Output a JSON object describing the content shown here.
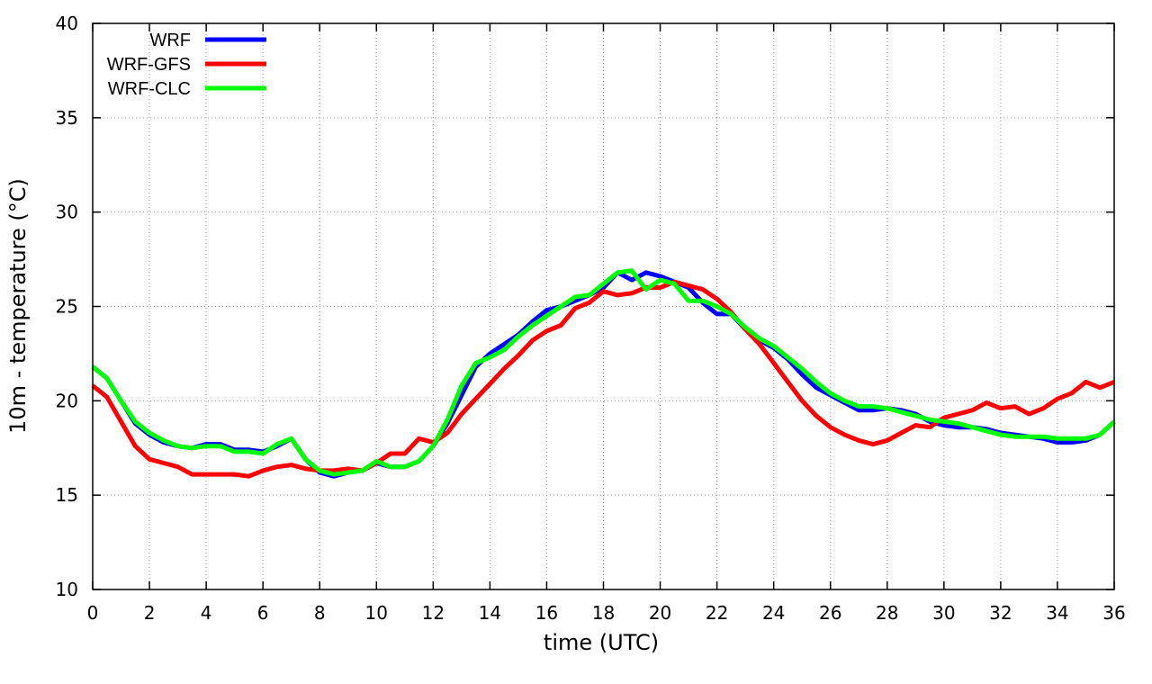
{
  "chart_data": {
    "type": "line",
    "title": "",
    "xlabel": "time (UTC)",
    "ylabel": "10m - temperature (°C)",
    "xlim": [
      0,
      36
    ],
    "ylim": [
      10,
      40
    ],
    "xticks": [
      0,
      2,
      4,
      6,
      8,
      10,
      12,
      14,
      16,
      18,
      20,
      22,
      24,
      26,
      28,
      30,
      32,
      34,
      36
    ],
    "yticks": [
      10,
      15,
      20,
      25,
      30,
      35,
      40
    ],
    "grid": true,
    "legend_position": "top-left",
    "series": [
      {
        "name": "WRF",
        "color": "#0000ff",
        "x": [
          0,
          0.5,
          1,
          1.5,
          2,
          2.5,
          3,
          3.5,
          4,
          4.5,
          5,
          5.5,
          6,
          6.5,
          7,
          7.5,
          8,
          8.5,
          9,
          9.5,
          10,
          10.5,
          11,
          11.5,
          12,
          12.5,
          13,
          13.5,
          14,
          14.5,
          15,
          15.5,
          16,
          16.5,
          17,
          17.5,
          18,
          18.5,
          19,
          19.5,
          20,
          20.5,
          21,
          21.5,
          22,
          22.5,
          23,
          23.5,
          24,
          24.5,
          25,
          25.5,
          26,
          26.5,
          27,
          27.5,
          28,
          28.5,
          29,
          29.5,
          30,
          30.5,
          31,
          31.5,
          32,
          32.5,
          33,
          33.5,
          34,
          34.5,
          35,
          35.5,
          36
        ],
        "values": [
          21.8,
          21.2,
          20.0,
          18.8,
          18.2,
          17.8,
          17.6,
          17.5,
          17.7,
          17.7,
          17.4,
          17.4,
          17.3,
          17.6,
          18.0,
          16.9,
          16.2,
          16.0,
          16.2,
          16.3,
          16.7,
          16.5,
          16.5,
          16.8,
          17.6,
          18.8,
          20.3,
          21.8,
          22.5,
          23.0,
          23.5,
          24.2,
          24.8,
          25.0,
          25.3,
          25.6,
          26.0,
          26.8,
          26.4,
          26.8,
          26.6,
          26.3,
          26.0,
          25.2,
          24.6,
          24.6,
          23.8,
          23.2,
          22.8,
          22.2,
          21.4,
          20.7,
          20.3,
          19.9,
          19.5,
          19.5,
          19.6,
          19.5,
          19.3,
          18.9,
          18.7,
          18.6,
          18.6,
          18.5,
          18.3,
          18.2,
          18.1,
          18.0,
          17.8,
          17.8,
          17.9,
          18.2,
          18.9
        ]
      },
      {
        "name": "WRF-GFS",
        "color": "#ff0000",
        "x": [
          0,
          0.5,
          1,
          1.5,
          2,
          2.5,
          3,
          3.5,
          4,
          4.5,
          5,
          5.5,
          6,
          6.5,
          7,
          7.5,
          8,
          8.5,
          9,
          9.5,
          10,
          10.5,
          11,
          11.5,
          12,
          12.5,
          13,
          13.5,
          14,
          14.5,
          15,
          15.5,
          16,
          16.5,
          17,
          17.5,
          18,
          18.5,
          19,
          19.5,
          20,
          20.5,
          21,
          21.5,
          22,
          22.5,
          23,
          23.5,
          24,
          24.5,
          25,
          25.5,
          26,
          26.5,
          27,
          27.5,
          28,
          28.5,
          29,
          29.5,
          30,
          30.5,
          31,
          31.5,
          32,
          32.5,
          33,
          33.5,
          34,
          34.5,
          35,
          35.5,
          36
        ],
        "values": [
          20.8,
          20.2,
          18.9,
          17.6,
          16.9,
          16.7,
          16.5,
          16.1,
          16.1,
          16.1,
          16.1,
          16.0,
          16.3,
          16.5,
          16.6,
          16.4,
          16.3,
          16.3,
          16.4,
          16.3,
          16.7,
          17.2,
          17.2,
          18.0,
          17.8,
          18.3,
          19.3,
          20.1,
          20.9,
          21.7,
          22.4,
          23.2,
          23.7,
          24.0,
          24.9,
          25.2,
          25.8,
          25.6,
          25.7,
          26.0,
          26.0,
          26.3,
          26.1,
          25.9,
          25.4,
          24.7,
          23.8,
          23.0,
          22.0,
          21.0,
          20.0,
          19.2,
          18.6,
          18.2,
          17.9,
          17.7,
          17.9,
          18.3,
          18.7,
          18.6,
          19.1,
          19.3,
          19.5,
          19.9,
          19.6,
          19.7,
          19.3,
          19.6,
          20.1,
          20.4,
          21.0,
          20.7,
          21.0
        ]
      },
      {
        "name": "WRF-CLC",
        "color": "#00ff00",
        "x": [
          0,
          0.5,
          1,
          1.5,
          2,
          2.5,
          3,
          3.5,
          4,
          4.5,
          5,
          5.5,
          6,
          6.5,
          7,
          7.5,
          8,
          8.5,
          9,
          9.5,
          10,
          10.5,
          11,
          11.5,
          12,
          12.5,
          13,
          13.5,
          14,
          14.5,
          15,
          15.5,
          16,
          16.5,
          17,
          17.5,
          18,
          18.5,
          19,
          19.5,
          20,
          20.5,
          21,
          21.5,
          22,
          22.5,
          23,
          23.5,
          24,
          24.5,
          25,
          25.5,
          26,
          26.5,
          27,
          27.5,
          28,
          28.5,
          29,
          29.5,
          30,
          30.5,
          31,
          31.5,
          32,
          32.5,
          33,
          33.5,
          34,
          34.5,
          35,
          35.5,
          36
        ],
        "values": [
          21.8,
          21.2,
          20.0,
          18.9,
          18.3,
          17.9,
          17.6,
          17.5,
          17.6,
          17.6,
          17.3,
          17.3,
          17.2,
          17.7,
          18.0,
          16.9,
          16.3,
          16.1,
          16.2,
          16.3,
          16.8,
          16.5,
          16.5,
          16.8,
          17.6,
          19.0,
          20.8,
          22.0,
          22.3,
          22.7,
          23.4,
          24.0,
          24.5,
          25.0,
          25.5,
          25.6,
          26.2,
          26.8,
          26.9,
          25.9,
          26.4,
          26.2,
          25.3,
          25.3,
          25.0,
          24.6,
          23.9,
          23.3,
          22.9,
          22.3,
          21.7,
          21.0,
          20.4,
          20.0,
          19.7,
          19.7,
          19.6,
          19.4,
          19.2,
          19.0,
          18.9,
          18.8,
          18.6,
          18.4,
          18.2,
          18.1,
          18.1,
          18.1,
          18.0,
          18.0,
          18.0,
          18.2,
          18.9
        ]
      }
    ]
  }
}
